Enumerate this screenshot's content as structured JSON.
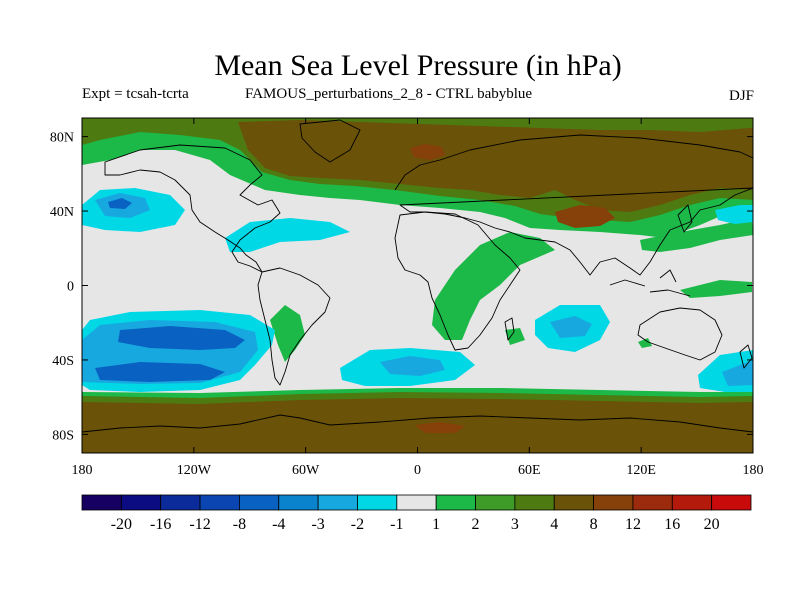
{
  "title": "Mean Sea Level Pressure (in hPa)",
  "expt_label": "Expt = tcsah-tcrta",
  "comparison_label": "FAMOUS_perturbations_2_8 - CTRL babyblue",
  "season": "DJF",
  "map": {
    "projection": "cylindrical-equidistant",
    "lon_range": [
      -180,
      180
    ],
    "lat_range": [
      -90,
      90
    ],
    "x_tick_labels": [
      "180",
      "120W",
      "60W",
      "0",
      "60E",
      "120E",
      "180"
    ],
    "x_tick_values": [
      -180,
      -120,
      -60,
      0,
      60,
      120,
      180
    ],
    "y_tick_labels": [
      "80N",
      "40N",
      "0",
      "40S",
      "80S"
    ],
    "y_tick_values": [
      80,
      40,
      0,
      -40,
      -80
    ],
    "background_class_color": "#e6e6e6",
    "coastline_color": "#000000"
  },
  "colorbar": {
    "colors": [
      "#160062",
      "#0c0c82",
      "#0c2b9a",
      "#0b45b2",
      "#0961c2",
      "#0a82cc",
      "#18a8e0",
      "#00d8e6",
      "#e6e6e6",
      "#1cb848",
      "#3e9b28",
      "#4e7a12",
      "#6a5208",
      "#864009",
      "#9c2a0c",
      "#b31a0b",
      "#c80a0a"
    ],
    "labels": [
      "-20",
      "-16",
      "-12",
      "-8",
      "-4",
      "-3",
      "-2",
      "-1",
      "1",
      "2",
      "3",
      "4",
      "8",
      "12",
      "16",
      "20"
    ]
  }
}
